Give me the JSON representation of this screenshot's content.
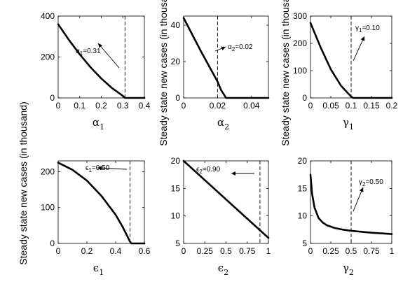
{
  "ylabel": "Steady state new cases (in thousand)",
  "chart_data": [
    {
      "type": "line",
      "xlabel": "α",
      "xlabel_sub": "1",
      "xlim": [
        0,
        0.4
      ],
      "ylim": [
        0,
        400
      ],
      "xticks": [
        "0",
        "0.1",
        "0.2",
        "0.3",
        "0.4"
      ],
      "xtick_values": [
        0,
        0.1,
        0.2,
        0.3,
        0.4
      ],
      "yticks": [
        "0",
        "200",
        "400"
      ],
      "ytick_values": [
        0,
        200,
        400
      ],
      "threshold_x": 0.31,
      "annotation": {
        "sym": "α",
        "sub": "1",
        "text": "=0.31"
      },
      "series": [
        {
          "x": [
            0,
            0.05,
            0.1,
            0.15,
            0.2,
            0.25,
            0.3,
            0.31,
            0.4
          ],
          "y": [
            360,
            283,
            213,
            150,
            95,
            48,
            10,
            0,
            0
          ]
        }
      ]
    },
    {
      "type": "line",
      "xlabel": "α",
      "xlabel_sub": "2",
      "xlim": [
        0,
        0.05
      ],
      "ylim": [
        0,
        45
      ],
      "xticks": [
        "0",
        "0.02",
        "0.04"
      ],
      "xtick_values": [
        0,
        0.02,
        0.04
      ],
      "yticks": [
        "0",
        "20",
        "40"
      ],
      "ytick_values": [
        0,
        20,
        40
      ],
      "threshold_x": 0.02,
      "annotation": {
        "sym": "α",
        "sub": "2",
        "text": "=0.02"
      },
      "series": [
        {
          "x": [
            0,
            0.005,
            0.01,
            0.015,
            0.02,
            0.022,
            0.024,
            0.025,
            0.05
          ],
          "y": [
            44,
            35,
            26,
            17.5,
            9,
            4.5,
            1.5,
            0,
            0
          ]
        }
      ]
    },
    {
      "type": "line",
      "xlabel": "γ",
      "xlabel_sub": "1",
      "xlim": [
        0,
        0.2
      ],
      "ylim": [
        0,
        300
      ],
      "xticks": [
        "0",
        "0.05",
        "0.1",
        "0.15",
        "0.2"
      ],
      "xtick_values": [
        0,
        0.05,
        0.1,
        0.15,
        0.2
      ],
      "yticks": [
        "0",
        "100",
        "200",
        "300"
      ],
      "ytick_values": [
        0,
        100,
        200,
        300
      ],
      "threshold_x": 0.1,
      "annotation": {
        "sym": "γ",
        "sub": "1",
        "text": "=0.10"
      },
      "series": [
        {
          "x": [
            0,
            0.025,
            0.05,
            0.075,
            0.1,
            0.105,
            0.2
          ],
          "y": [
            275,
            185,
            105,
            45,
            5,
            0,
            0
          ]
        }
      ]
    },
    {
      "type": "line",
      "xlabel": "ϵ",
      "xlabel_sub": "1",
      "xlim": [
        0,
        0.6
      ],
      "ylim": [
        0,
        230
      ],
      "xticks": [
        "0",
        "0.2",
        "0.4",
        "0.6"
      ],
      "xtick_values": [
        0,
        0.2,
        0.4,
        0.6
      ],
      "yticks": [
        "0",
        "100",
        "200"
      ],
      "ytick_values": [
        0,
        100,
        200
      ],
      "threshold_x": 0.5,
      "annotation": {
        "sym": "ϵ",
        "sub": "1",
        "text": "=0.50"
      },
      "series": [
        {
          "x": [
            0,
            0.1,
            0.2,
            0.3,
            0.4,
            0.45,
            0.5,
            0.51,
            0.6
          ],
          "y": [
            225,
            205,
            175,
            133,
            80,
            45,
            5,
            0,
            0
          ]
        }
      ]
    },
    {
      "type": "line",
      "xlabel": "ϵ",
      "xlabel_sub": "2",
      "xlim": [
        0,
        1
      ],
      "ylim": [
        5,
        20
      ],
      "xticks": [
        "0",
        "0.25",
        "0.5",
        "0.75",
        "1"
      ],
      "xtick_values": [
        0,
        0.25,
        0.5,
        0.75,
        1
      ],
      "yticks": [
        "5",
        "10",
        "15",
        "20"
      ],
      "ytick_values": [
        5,
        10,
        15,
        20
      ],
      "threshold_x": 0.9,
      "annotation": {
        "sym": "ϵ",
        "sub": "2",
        "text": "=0.90"
      },
      "series": [
        {
          "x": [
            0,
            1
          ],
          "y": [
            20,
            6
          ]
        }
      ]
    },
    {
      "type": "line",
      "xlabel": "γ",
      "xlabel_sub": "2",
      "xlim": [
        0,
        1
      ],
      "ylim": [
        5,
        20
      ],
      "xticks": [
        "0",
        "0.25",
        "0.5",
        "0.75",
        "1"
      ],
      "xtick_values": [
        0,
        0.25,
        0.5,
        0.75,
        1
      ],
      "yticks": [
        "5",
        "10",
        "15",
        "20"
      ],
      "ytick_values": [
        5,
        10,
        15,
        20
      ],
      "threshold_x": 0.5,
      "annotation": {
        "sym": "γ",
        "sub": "2",
        "text": "=0.50"
      },
      "series": [
        {
          "x": [
            0,
            0.02,
            0.05,
            0.1,
            0.15,
            0.2,
            0.3,
            0.4,
            0.5,
            0.6,
            0.75,
            1
          ],
          "y": [
            17.5,
            14,
            11.5,
            9.6,
            8.8,
            8.3,
            7.8,
            7.5,
            7.3,
            7.15,
            6.95,
            6.7
          ]
        }
      ]
    }
  ]
}
